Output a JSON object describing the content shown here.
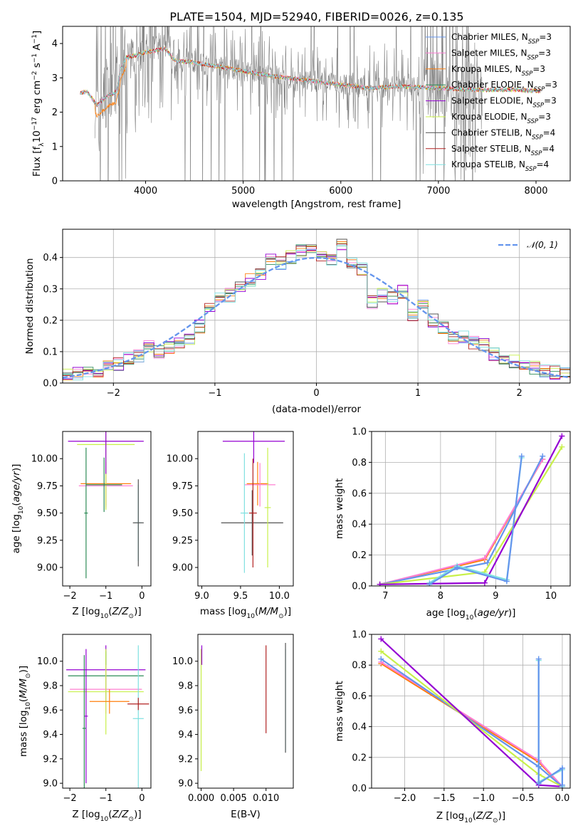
{
  "colors": {
    "c0": "#6495ed",
    "c1": "#ff7fd4",
    "c2": "#ff7f0e",
    "c3": "#2e8b57",
    "c4": "#9400d3",
    "c5": "#c8f04a",
    "c6": "#555555",
    "c7": "#b22222",
    "c8": "#7fe0e0",
    "data": "#808080"
  },
  "chart_data": [
    {
      "id": "spectrum",
      "type": "line",
      "title": "PLATE=1504, MJD=52940, FIBERID=0026, z=0.135",
      "xlabel": "wavelength [Angstrom, rest frame]",
      "ylabel_parts": [
        "Flux [f",
        "λ",
        "10",
        "−17",
        " erg cm",
        "−2",
        " s",
        "−1",
        " A",
        "−1",
        "]"
      ],
      "xlim": [
        3150,
        8350
      ],
      "ylim": [
        0,
        4.5
      ],
      "xticks": [
        4000,
        5000,
        6000,
        7000,
        8000
      ],
      "yticks": [
        0,
        1,
        2,
        3,
        4
      ],
      "legend_position": "right",
      "series": [
        {
          "name": "Chabrier MILES, N",
          "sub": "SSP",
          "suffix": "=3",
          "color": "c0"
        },
        {
          "name": "Salpeter MILES, N",
          "sub": "SSP",
          "suffix": "=3",
          "color": "c1"
        },
        {
          "name": "Kroupa MILES, N",
          "sub": "SSP",
          "suffix": "=3",
          "color": "c2"
        },
        {
          "name": "Chabrier ELODIE, N",
          "sub": "SSP",
          "suffix": "=3",
          "color": "c3"
        },
        {
          "name": "Salpeter ELODIE, N",
          "sub": "SSP",
          "suffix": "=3",
          "color": "c4"
        },
        {
          "name": "Kroupa ELODIE, N",
          "sub": "SSP",
          "suffix": "=3",
          "color": "c5"
        },
        {
          "name": "Chabrier STELIB, N",
          "sub": "SSP",
          "suffix": "=4",
          "color": "c6"
        },
        {
          "name": "Salpeter STELIB, N",
          "sub": "SSP",
          "suffix": "=4",
          "color": "c7"
        },
        {
          "name": "Kroupa STELIB, N",
          "sub": "SSP",
          "suffix": "=4",
          "color": "c8"
        }
      ],
      "model_continuum": {
        "x": [
          3330,
          3400,
          3500,
          3600,
          3700,
          3750,
          3800,
          3900,
          4000,
          4100,
          4200,
          4300,
          4500,
          4800,
          5000,
          5300,
          5600,
          6000,
          6300,
          6600,
          7000,
          7400,
          7800,
          8000
        ],
        "y": [
          2.55,
          2.6,
          2.2,
          2.45,
          2.6,
          3.3,
          3.6,
          3.65,
          3.75,
          3.8,
          3.85,
          3.5,
          3.45,
          3.3,
          3.2,
          3.05,
          2.95,
          2.8,
          2.7,
          2.75,
          2.7,
          2.65,
          2.65,
          2.62
        ]
      },
      "data_range": [
        3480,
        7450
      ]
    },
    {
      "id": "residuals",
      "type": "line",
      "xlabel": "(data-model)/error",
      "ylabel": "Normed distribution",
      "xlim": [
        -2.5,
        2.5
      ],
      "ylim": [
        0,
        0.49
      ],
      "xticks": [
        -2,
        -1,
        0,
        1,
        2
      ],
      "yticks": [
        0.0,
        0.1,
        0.2,
        0.3,
        0.4
      ],
      "grid": true,
      "legend": {
        "label": "𝒩(0, 1)",
        "position": "top-right"
      },
      "hist_bins": [
        -2.5,
        -2.4,
        -2.3,
        -2.2,
        -2.1,
        -2.0,
        -1.9,
        -1.8,
        -1.7,
        -1.6,
        -1.5,
        -1.4,
        -1.3,
        -1.2,
        -1.1,
        -1.0,
        -0.9,
        -0.8,
        -0.7,
        -0.6,
        -0.5,
        -0.4,
        -0.3,
        -0.2,
        -0.1,
        0.0,
        0.1,
        0.2,
        0.3,
        0.4,
        0.5,
        0.6,
        0.7,
        0.8,
        0.9,
        1.0,
        1.1,
        1.2,
        1.3,
        1.4,
        1.5,
        1.6,
        1.7,
        1.8,
        1.9,
        2.0,
        2.1,
        2.2,
        2.3,
        2.4
      ],
      "hist_values": [
        0.025,
        0.028,
        0.035,
        0.04,
        0.055,
        0.06,
        0.075,
        0.085,
        0.12,
        0.1,
        0.115,
        0.13,
        0.14,
        0.18,
        0.24,
        0.27,
        0.28,
        0.3,
        0.33,
        0.35,
        0.39,
        0.38,
        0.4,
        0.42,
        0.43,
        0.4,
        0.39,
        0.44,
        0.38,
        0.36,
        0.26,
        0.28,
        0.27,
        0.29,
        0.22,
        0.26,
        0.2,
        0.18,
        0.14,
        0.15,
        0.13,
        0.12,
        0.09,
        0.08,
        0.07,
        0.06,
        0.05,
        0.04,
        0.035,
        0.035
      ]
    },
    {
      "id": "age-vs-Z",
      "type": "scatter",
      "xlabel": "Z [log10(Z/Z⊙)]",
      "ylabel": "age  [log10(age/yr)]",
      "xlim": [
        -2.2,
        0.25
      ],
      "ylim": [
        8.83,
        10.25
      ],
      "xticks": [
        -2,
        -1,
        0
      ],
      "yticks": [
        9.0,
        9.25,
        9.5,
        9.75,
        10.0
      ],
      "points": [
        {
          "x": -1.0,
          "y": 9.77,
          "xerr": 0.7,
          "yerr": 0.2,
          "color": "c2"
        },
        {
          "x": -1.0,
          "y": 9.75,
          "xerr": 0.75,
          "yerr": 0.2,
          "color": "c1"
        },
        {
          "x": -1.0,
          "y": 10.13,
          "xerr": 0.8,
          "yerr": 0.6,
          "color": "c5"
        },
        {
          "x": -1.0,
          "y": 10.16,
          "xerr": 1.05,
          "yerr": 0.3,
          "color": "c4"
        },
        {
          "x": -1.05,
          "y": 9.76,
          "xerr": 0.5,
          "yerr": 0.25,
          "color": "c3"
        },
        {
          "x": -0.1,
          "y": 9.41,
          "xerr": 0.1,
          "yerr": 0.35,
          "color": "c8"
        },
        {
          "x": -0.1,
          "y": 9.41,
          "xerr": 0.15,
          "yerr": 0.4,
          "color": "c6"
        },
        {
          "x": -1.55,
          "y": 9.5,
          "xerr": 0.05,
          "yerr": 0.6,
          "color": "c3"
        }
      ]
    },
    {
      "id": "age-vs-mass",
      "type": "scatter",
      "xlabel": "mass [log10(M/M⊙)]",
      "xlim": [
        8.95,
        10.18
      ],
      "ylim": [
        8.83,
        10.25
      ],
      "xticks": [
        9.0,
        9.5,
        10.0
      ],
      "yticks": [
        9.0,
        9.25,
        9.5,
        9.75,
        10.0
      ],
      "points": [
        {
          "x": 9.65,
          "y": 9.41,
          "xerr": 0.4,
          "yerr": 0.3,
          "color": "c6"
        },
        {
          "x": 9.67,
          "y": 10.16,
          "xerr": 0.4,
          "yerr": 0.2,
          "color": "c4"
        },
        {
          "x": 9.72,
          "y": 9.77,
          "xerr": 0.14,
          "yerr": 0.2,
          "color": "c2"
        },
        {
          "x": 9.75,
          "y": 9.76,
          "xerr": 0.2,
          "yerr": 0.2,
          "color": "c1"
        },
        {
          "x": 9.66,
          "y": 9.5,
          "xerr": 0.05,
          "yerr": 0.5,
          "color": "c7"
        },
        {
          "x": 9.55,
          "y": 9.5,
          "xerr": 0.05,
          "yerr": 0.55,
          "color": "c8"
        },
        {
          "x": 9.85,
          "y": 9.55,
          "xerr": 0.04,
          "yerr": 0.55,
          "color": "c5"
        }
      ]
    },
    {
      "id": "weight-vs-age",
      "type": "line",
      "xlabel": "age  [log10(age/yr)]",
      "ylabel": "mass weight",
      "xlim": [
        6.75,
        10.35
      ],
      "ylim": [
        0,
        1.0
      ],
      "xticks": [
        7,
        8,
        9,
        10
      ],
      "yticks": [
        0.0,
        0.2,
        0.4,
        0.6,
        0.8,
        1.0
      ],
      "grid": true,
      "series": [
        {
          "color": "c2",
          "x": [
            6.9,
            8.8,
            9.85
          ],
          "y": [
            0.01,
            0.17,
            0.82
          ]
        },
        {
          "color": "c1",
          "x": [
            6.9,
            8.8,
            9.85
          ],
          "y": [
            0.01,
            0.18,
            0.82
          ]
        },
        {
          "color": "c0",
          "x": [
            6.9,
            8.85,
            9.85
          ],
          "y": [
            0.01,
            0.15,
            0.84
          ]
        },
        {
          "color": "c5",
          "x": [
            6.9,
            8.8,
            10.2
          ],
          "y": [
            0.01,
            0.09,
            0.9
          ]
        },
        {
          "color": "c4",
          "x": [
            6.9,
            8.8,
            10.2
          ],
          "y": [
            0.01,
            0.02,
            0.97
          ]
        },
        {
          "color": "c8",
          "x": [
            7.8,
            8.3,
            9.2,
            9.47
          ],
          "y": [
            0.02,
            0.13,
            0.04,
            0.83
          ]
        },
        {
          "color": "c0",
          "x": [
            7.8,
            8.3,
            9.2,
            9.47
          ],
          "y": [
            0.01,
            0.12,
            0.03,
            0.84
          ]
        }
      ]
    },
    {
      "id": "mass-vs-Z",
      "type": "scatter",
      "xlabel": "Z [log10(Z/Z⊙)]",
      "ylabel": "mass [log10(M/M⊙)]",
      "xlim": [
        -2.2,
        0.25
      ],
      "ylim": [
        8.96,
        10.22
      ],
      "xticks": [
        -2,
        -1,
        0
      ],
      "yticks": [
        9.0,
        9.2,
        9.4,
        9.6,
        9.8,
        10.0
      ],
      "points": [
        {
          "x": -1.0,
          "y": 9.93,
          "xerr": 1.1,
          "yerr": 0.2,
          "color": "c4"
        },
        {
          "x": -1.0,
          "y": 9.88,
          "xerr": 1.05,
          "yerr": 0.2,
          "color": "c3"
        },
        {
          "x": -1.0,
          "y": 9.77,
          "xerr": 1.0,
          "yerr": 0.2,
          "color": "c1"
        },
        {
          "x": -1.0,
          "y": 9.75,
          "xerr": 1.05,
          "yerr": 0.35,
          "color": "c5"
        },
        {
          "x": -0.9,
          "y": 9.67,
          "xerr": 0.55,
          "yerr": 0.1,
          "color": "c2"
        },
        {
          "x": -0.1,
          "y": 9.53,
          "xerr": 0.15,
          "yerr": 0.6,
          "color": "c8"
        },
        {
          "x": -0.1,
          "y": 9.65,
          "xerr": 0.3,
          "yerr": 0.05,
          "color": "c7"
        },
        {
          "x": -1.55,
          "y": 9.55,
          "xerr": 0.05,
          "yerr": 0.55,
          "color": "c4"
        },
        {
          "x": -1.6,
          "y": 9.45,
          "xerr": 0.05,
          "yerr": 0.6,
          "color": "c3"
        }
      ]
    },
    {
      "id": "mass-vs-ebv",
      "type": "scatter",
      "xlabel": "E(B-V)",
      "xlim": [
        -0.0005,
        0.0142
      ],
      "ylim": [
        8.96,
        10.22
      ],
      "xticks": [
        0.0,
        0.005,
        0.01
      ],
      "xticklabels": [
        "0.000",
        "0.005",
        "0.010"
      ],
      "yticks": [
        9.0,
        9.2,
        9.4,
        9.6,
        9.8,
        10.0
      ],
      "points": [
        {
          "x": 0.0,
          "y": 9.6,
          "xerr": 0,
          "yerr": 0.5,
          "color": "c5"
        },
        {
          "x": 0.0001,
          "y": 10.05,
          "xerr": 0,
          "yerr": 0.08,
          "color": "c4"
        },
        {
          "x": 0.01,
          "y": 9.77,
          "xerr": 0,
          "yerr": 0.36,
          "color": "c7"
        },
        {
          "x": 0.013,
          "y": 9.68,
          "xerr": 0,
          "yerr": 0.42,
          "color": "c8"
        },
        {
          "x": 0.013,
          "y": 9.7,
          "xerr": 0,
          "yerr": 0.45,
          "color": "c6"
        }
      ]
    },
    {
      "id": "weight-vs-Z",
      "type": "line",
      "xlabel": "Z [log10(Z/Z⊙)]",
      "ylabel": "mass weight",
      "xlim": [
        -2.42,
        0.1
      ],
      "ylim": [
        0,
        1.0
      ],
      "xticks": [
        -2.0,
        -1.5,
        -1.0,
        -0.5,
        0.0
      ],
      "yticks": [
        0.0,
        0.2,
        0.4,
        0.6,
        0.8,
        1.0
      ],
      "grid": true,
      "series": [
        {
          "color": "c2",
          "x": [
            -2.3,
            -0.3,
            0.0
          ],
          "y": [
            0.81,
            0.17,
            0.01
          ]
        },
        {
          "color": "c1",
          "x": [
            -2.3,
            -0.3,
            0.0
          ],
          "y": [
            0.82,
            0.18,
            0.01
          ]
        },
        {
          "color": "c0",
          "x": [
            -2.3,
            -0.3,
            0.0
          ],
          "y": [
            0.84,
            0.14,
            0.01
          ]
        },
        {
          "color": "c5",
          "x": [
            -2.3,
            -0.3,
            0.0
          ],
          "y": [
            0.89,
            0.09,
            0.01
          ]
        },
        {
          "color": "c4",
          "x": [
            -2.3,
            -0.3,
            0.0
          ],
          "y": [
            0.97,
            0.02,
            0.01
          ]
        },
        {
          "color": "c8",
          "x": [
            -0.3,
            -0.3,
            0.0,
            0.0
          ],
          "y": [
            0.83,
            0.04,
            0.12,
            0.01
          ]
        },
        {
          "color": "c0",
          "x": [
            -0.3,
            -0.3,
            0.0,
            0.0
          ],
          "y": [
            0.84,
            0.03,
            0.13,
            0.02
          ]
        }
      ]
    }
  ]
}
